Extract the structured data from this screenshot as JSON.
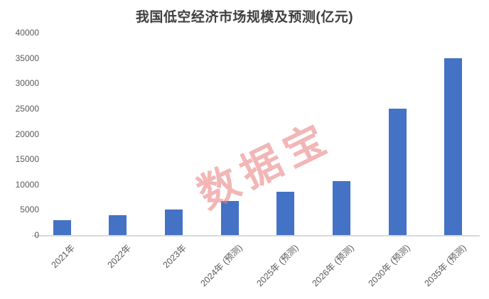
{
  "chart_data": {
    "type": "bar",
    "title": "我国低空经济市场规模及预测(亿元)",
    "categories": [
      "2021年",
      "2022年",
      "2023年",
      "2024年 (预测)",
      "2025年 (预测)",
      "2026年 (预测)",
      "2030年 (预测)",
      "2035年 (预测)"
    ],
    "values": [
      3000,
      3900,
      5100,
      6700,
      8600,
      10600,
      25000,
      35000
    ],
    "xlabel": "",
    "ylabel": "",
    "ylim": [
      0,
      40000
    ],
    "yticks": [
      0,
      5000,
      10000,
      15000,
      20000,
      25000,
      30000,
      35000,
      40000
    ],
    "grid": false,
    "legend": "none",
    "bar_color": "#4472C4",
    "axis_color": "#D9D9D9",
    "label_color": "#595959",
    "title_color": "#3F3F3F",
    "watermark": {
      "text": "数据宝",
      "color": "#E87C7C"
    }
  }
}
